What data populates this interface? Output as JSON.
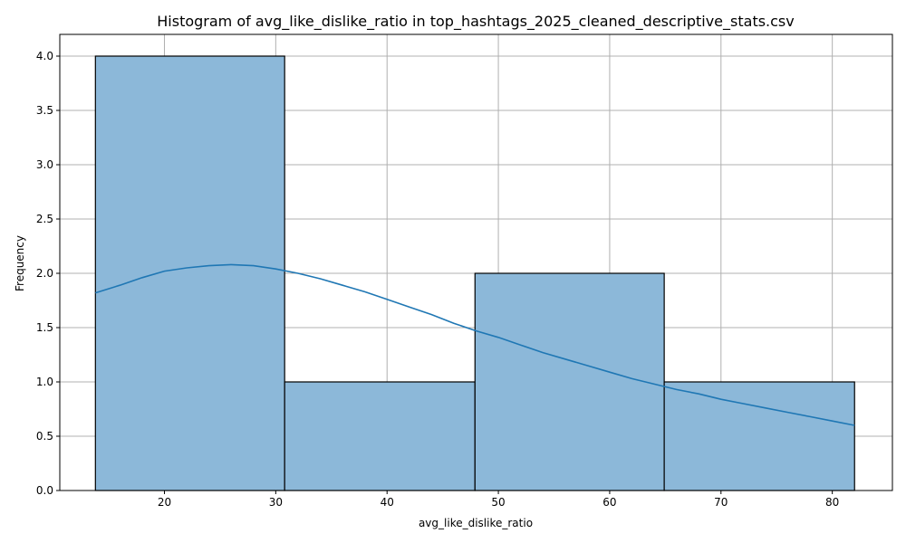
{
  "chart_data": {
    "type": "bar",
    "title": "Histogram of avg_like_dislike_ratio in top_hashtags_2025_cleaned_descriptive_stats.csv",
    "xlabel": "avg_like_dislike_ratio",
    "ylabel": "Frequency",
    "xlim": [
      10.6,
      85.4
    ],
    "ylim": [
      0,
      4.2
    ],
    "grid": true,
    "x_ticks": [
      20,
      30,
      40,
      50,
      60,
      70,
      80
    ],
    "x_tick_labels": [
      "20",
      "30",
      "40",
      "50",
      "60",
      "70",
      "80"
    ],
    "y_ticks": [
      0,
      0.5,
      1,
      1.5,
      2,
      2.5,
      3,
      3.5,
      4
    ],
    "y_tick_labels": [
      "0.0",
      "0.5",
      "1.0",
      "1.5",
      "2.0",
      "2.5",
      "3.0",
      "3.5",
      "4.0"
    ],
    "bins": [
      {
        "start": 13.8,
        "end": 30.8,
        "count": 4
      },
      {
        "start": 30.8,
        "end": 47.9,
        "count": 1
      },
      {
        "start": 47.9,
        "end": 64.9,
        "count": 2
      },
      {
        "start": 64.9,
        "end": 82.0,
        "count": 1
      }
    ],
    "kde": {
      "x": [
        13.8,
        16,
        18,
        20,
        22,
        24,
        26,
        28,
        30,
        32,
        34,
        36,
        38,
        40,
        42,
        44,
        46,
        48,
        50,
        52,
        54,
        56,
        58,
        60,
        62,
        64,
        66,
        68,
        70,
        72,
        74,
        76,
        78,
        80,
        82
      ],
      "y": [
        1.82,
        1.89,
        1.96,
        2.02,
        2.05,
        2.07,
        2.08,
        2.07,
        2.04,
        2.0,
        1.95,
        1.89,
        1.83,
        1.76,
        1.69,
        1.62,
        1.54,
        1.47,
        1.41,
        1.34,
        1.27,
        1.21,
        1.15,
        1.09,
        1.03,
        0.98,
        0.93,
        0.89,
        0.84,
        0.8,
        0.76,
        0.72,
        0.68,
        0.64,
        0.6
      ]
    },
    "colors": {
      "bar_fill": "#8cb8d9",
      "bar_edge": "#000000",
      "kde_line": "#1f77b4",
      "grid": "#b0b0b0"
    }
  }
}
